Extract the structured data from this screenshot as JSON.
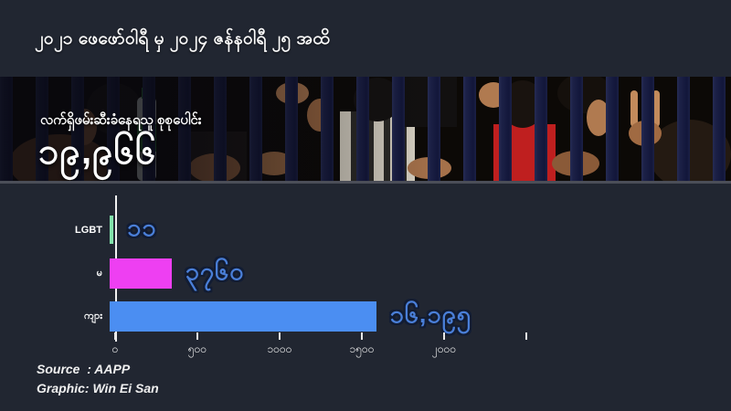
{
  "header": {
    "title": "၂၀၂၁ ဖေဖော်ဝါရီ မှ ၂၀၂၄ ဇန်နဝါရီ ၂၅ အထိ"
  },
  "photo": {
    "caption": "လက်ရှိဖမ်းဆီးခံနေရသူ စုစုပေါင်း",
    "total_label": "၁၉,၉၆၆",
    "total_numeric": 19966,
    "alt": "detained people gripping navy prison bars"
  },
  "chart_data": {
    "type": "bar",
    "orientation": "horizontal",
    "title": "",
    "categories": [
      "LGBT",
      "မ",
      "ကျား"
    ],
    "values": [
      11,
      3760,
      16195
    ],
    "value_labels": [
      "၁၁",
      "၃၇၆၀",
      "၁၆,၁၉၅"
    ],
    "bar_colors": [
      "#82e3ab",
      "#ee3ff2",
      "#4b8ef2"
    ],
    "x_ticks": [
      "၀",
      "၅၀၀",
      "၁၀၀၀",
      "၁၅၀၀",
      "၂၀၀၀",
      ""
    ],
    "x_tick_values": [
      0,
      500,
      1000,
      1500,
      2000,
      2500
    ],
    "axis_max": 2500,
    "display_scale": 0.1,
    "xlabel": "",
    "ylabel": "",
    "grid": false,
    "legend": false
  },
  "footer": {
    "source": "Source  : AAPP",
    "credit": "Graphic: Win Ei San"
  },
  "colors": {
    "background": "#212631",
    "value_text": "#4a7fd8",
    "axis": "#f2f2f2"
  }
}
